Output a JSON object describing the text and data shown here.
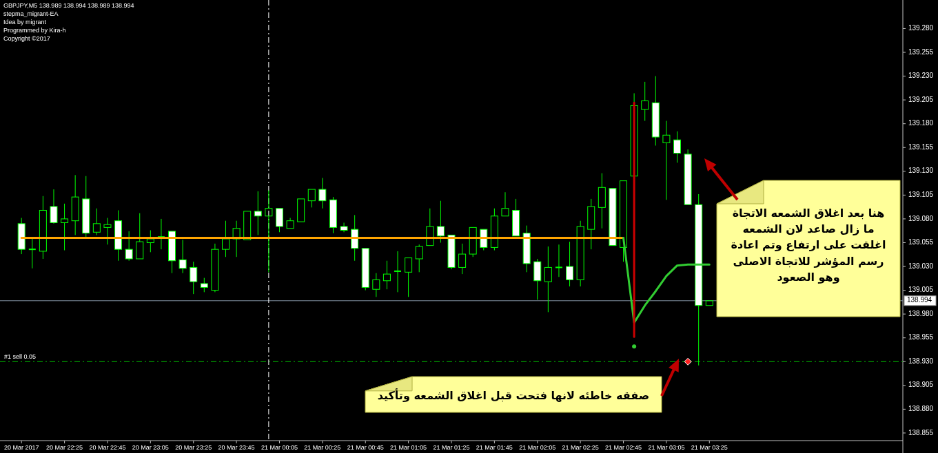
{
  "chart_data": {
    "type": "candlestick",
    "title": "GBPJPY,M5  138.989 138.994 138.989 138.994",
    "subtitle": "stepma_migrant-EA\nIdea by migrant\nProgrammed by Kira-h\nCopyright ©2017",
    "annotations": [
      "هنا بعد اغلاق الشمعه الاتجاة ما زال صاعد لان الشمعه اغلقت على ارتفاع وتم اعادة رسم المؤشر للاتجاة الاصلى وهو الصعود",
      "صفقه خاطئه لانها فتحت قبل اغلاق الشمعه وتأكيد"
    ],
    "x": [
      "2017-03-20T22:05",
      "2017-03-20T22:10",
      "2017-03-20T22:15",
      "2017-03-20T22:20",
      "2017-03-20T22:25",
      "2017-03-20T22:30",
      "2017-03-20T22:35",
      "2017-03-20T22:40",
      "2017-03-20T22:45",
      "2017-03-20T22:50",
      "2017-03-20T22:55",
      "2017-03-20T23:00",
      "2017-03-20T23:05",
      "2017-03-20T23:10",
      "2017-03-20T23:15",
      "2017-03-20T23:20",
      "2017-03-20T23:25",
      "2017-03-20T23:30",
      "2017-03-20T23:35",
      "2017-03-20T23:40",
      "2017-03-20T23:45",
      "2017-03-20T23:50",
      "2017-03-20T23:55",
      "2017-03-21T00:00",
      "2017-03-21T00:05",
      "2017-03-21T00:10",
      "2017-03-21T00:15",
      "2017-03-21T00:20",
      "2017-03-21T00:25",
      "2017-03-21T00:30",
      "2017-03-21T00:35",
      "2017-03-21T00:40",
      "2017-03-21T00:45",
      "2017-03-21T00:50",
      "2017-03-21T00:55",
      "2017-03-21T01:00",
      "2017-03-21T01:05",
      "2017-03-21T01:10",
      "2017-03-21T01:15",
      "2017-03-21T01:20",
      "2017-03-21T01:25",
      "2017-03-21T01:30",
      "2017-03-21T01:35",
      "2017-03-21T01:40",
      "2017-03-21T01:45",
      "2017-03-21T01:50",
      "2017-03-21T01:55",
      "2017-03-21T02:00",
      "2017-03-21T02:05",
      "2017-03-21T02:10",
      "2017-03-21T02:15",
      "2017-03-21T02:20",
      "2017-03-21T02:25",
      "2017-03-21T02:30",
      "2017-03-21T02:35",
      "2017-03-21T02:40",
      "2017-03-21T02:45",
      "2017-03-21T02:50",
      "2017-03-21T02:55",
      "2017-03-21T03:00",
      "2017-03-21T03:05",
      "2017-03-21T03:10",
      "2017-03-21T03:15",
      "2017-03-21T03:20",
      "2017-03-21T03:25"
    ],
    "ohlc": [
      [
        139.075,
        139.081,
        139.043,
        139.048
      ],
      [
        139.048,
        139.059,
        139.028,
        139.048
      ],
      [
        139.046,
        139.104,
        139.038,
        139.089
      ],
      [
        139.093,
        139.111,
        139.075,
        139.076
      ],
      [
        139.076,
        139.096,
        139.047,
        139.08
      ],
      [
        139.078,
        139.126,
        139.063,
        139.103
      ],
      [
        139.101,
        139.125,
        139.061,
        139.065
      ],
      [
        139.066,
        139.091,
        139.063,
        139.075
      ],
      [
        139.071,
        139.081,
        139.053,
        139.074
      ],
      [
        139.078,
        139.089,
        139.036,
        139.048
      ],
      [
        139.048,
        139.067,
        139.036,
        139.038
      ],
      [
        139.038,
        139.086,
        139.038,
        139.056
      ],
      [
        139.055,
        139.068,
        139.045,
        139.059
      ],
      [
        139.061,
        139.08,
        139.048,
        139.061
      ],
      [
        139.067,
        139.067,
        139.023,
        139.036
      ],
      [
        139.037,
        139.058,
        139.023,
        139.028
      ],
      [
        139.029,
        139.035,
        139.001,
        139.014
      ],
      [
        139.012,
        139.018,
        139.003,
        139.008
      ],
      [
        139.005,
        139.054,
        139.003,
        139.048
      ],
      [
        139.048,
        139.078,
        139.04,
        139.059
      ],
      [
        139.059,
        139.078,
        139.04,
        139.07
      ],
      [
        139.058,
        139.088,
        139.058,
        139.088
      ],
      [
        139.088,
        139.109,
        139.063,
        139.083
      ],
      [
        139.083,
        139.11,
        139.024,
        139.091
      ],
      [
        139.091,
        139.091,
        139.066,
        139.072
      ],
      [
        139.07,
        139.081,
        139.07,
        139.078
      ],
      [
        139.077,
        139.101,
        139.077,
        139.101
      ],
      [
        139.099,
        139.111,
        139.092,
        139.111
      ],
      [
        139.111,
        139.123,
        139.091,
        139.099
      ],
      [
        139.1,
        139.103,
        139.065,
        139.071
      ],
      [
        139.072,
        139.076,
        139.066,
        139.068
      ],
      [
        139.069,
        139.084,
        139.036,
        139.049
      ],
      [
        139.049,
        139.049,
        139.005,
        139.008
      ],
      [
        139.006,
        139.023,
        138.998,
        139.016
      ],
      [
        139.015,
        139.036,
        139.006,
        139.022
      ],
      [
        139.025,
        139.046,
        139.003,
        139.025
      ],
      [
        139.024,
        139.039,
        138.998,
        139.039
      ],
      [
        139.038,
        139.053,
        139.024,
        139.051
      ],
      [
        139.052,
        139.091,
        139.052,
        139.072
      ],
      [
        139.072,
        139.099,
        139.055,
        139.062
      ],
      [
        139.063,
        139.063,
        139.027,
        139.029
      ],
      [
        139.029,
        139.054,
        139.022,
        139.043
      ],
      [
        139.043,
        139.071,
        139.04,
        139.071
      ],
      [
        139.069,
        139.069,
        139.047,
        139.05
      ],
      [
        139.05,
        139.091,
        139.047,
        139.083
      ],
      [
        139.083,
        139.108,
        139.083,
        139.091
      ],
      [
        139.089,
        139.101,
        139.062,
        139.062
      ],
      [
        139.065,
        139.073,
        139.024,
        139.033
      ],
      [
        139.035,
        139.038,
        138.995,
        139.015
      ],
      [
        139.014,
        139.051,
        138.982,
        139.029
      ],
      [
        139.029,
        139.053,
        139.019,
        139.029
      ],
      [
        139.03,
        139.056,
        139.009,
        139.016
      ],
      [
        139.016,
        139.078,
        139.009,
        139.072
      ],
      [
        139.069,
        139.101,
        139.048,
        139.093
      ],
      [
        139.092,
        139.128,
        139.07,
        139.113
      ],
      [
        139.112,
        139.112,
        139.052,
        139.052
      ],
      [
        139.05,
        139.12,
        139.035,
        139.12
      ],
      [
        139.125,
        139.212,
        139.125,
        139.199
      ],
      [
        139.195,
        139.224,
        139.183,
        139.204
      ],
      [
        139.202,
        139.23,
        139.157,
        139.166
      ],
      [
        139.16,
        139.183,
        139.1,
        139.168
      ],
      [
        139.163,
        139.172,
        139.139,
        139.149
      ],
      [
        139.148,
        139.153,
        139.095,
        139.095
      ],
      [
        139.095,
        139.106,
        138.926,
        138.989
      ],
      [
        138.989,
        138.994,
        138.989,
        138.994
      ]
    ],
    "series": [
      {
        "type": "line",
        "color": "#ffa500",
        "x": [
          "2017-03-20T22:05",
          "2017-03-21T02:45"
        ],
        "values": [
          139.06,
          139.06
        ]
      },
      {
        "type": "line",
        "color": "#32cd32",
        "x": [
          "2017-03-21T02:45",
          "2017-03-21T02:50",
          "2017-03-21T02:55",
          "2017-03-21T03:00",
          "2017-03-21T03:05",
          "2017-03-21T03:10",
          "2017-03-21T03:15",
          "2017-03-21T03:20",
          "2017-03-21T03:25"
        ],
        "values": [
          139.06,
          138.971,
          138.989,
          139.004,
          139.02,
          139.031,
          139.032,
          139.032,
          139.032
        ]
      },
      {
        "type": "line",
        "color": "#cc0000",
        "x": [
          "2017-03-21T02:50",
          "2017-03-21T02:50"
        ],
        "values": [
          139.202,
          138.956
        ]
      },
      {
        "type": "scatter",
        "color": "#32cd32",
        "marker": "circle",
        "x": [
          "2017-03-21T02:50"
        ],
        "values": [
          138.946
        ]
      },
      {
        "type": "scatter",
        "color": "#ff2020",
        "marker": "diamond",
        "x": [
          "2017-03-21T03:15"
        ],
        "values": [
          138.93
        ]
      }
    ],
    "ref_lines": [
      {
        "axis": "y",
        "value": 138.93,
        "label": "#1 sell 0.05",
        "color": "#00c000",
        "line_style": "dashed"
      },
      {
        "axis": "y",
        "value": 138.994,
        "label": "138.994",
        "color": "#8090a0",
        "line_style": "solid"
      },
      {
        "axis": "x",
        "value": "2017-03-21T00:00",
        "color": "#ffffff",
        "line_style": "dashed"
      }
    ],
    "xlim": [
      "2017-03-20T21:55",
      "2017-03-21T04:55"
    ],
    "xticks": [
      {
        "value": "2017-03-20T22:05",
        "label": "20 Mar 2017"
      },
      {
        "value": "2017-03-20T22:25",
        "label": "20 Mar 22:25"
      },
      {
        "value": "2017-03-20T22:45",
        "label": "20 Mar 22:45"
      },
      {
        "value": "2017-03-20T23:05",
        "label": "20 Mar 23:05"
      },
      {
        "value": "2017-03-20T23:25",
        "label": "20 Mar 23:25"
      },
      {
        "value": "2017-03-20T23:45",
        "label": "20 Mar 23:45"
      },
      {
        "value": "2017-03-21T00:05",
        "label": "21 Mar 00:05"
      },
      {
        "value": "2017-03-21T00:25",
        "label": "21 Mar 00:25"
      },
      {
        "value": "2017-03-21T00:45",
        "label": "21 Mar 00:45"
      },
      {
        "value": "2017-03-21T01:05",
        "label": "21 Mar 01:05"
      },
      {
        "value": "2017-03-21T01:25",
        "label": "21 Mar 01:25"
      },
      {
        "value": "2017-03-21T01:45",
        "label": "21 Mar 01:45"
      },
      {
        "value": "2017-03-21T02:05",
        "label": "21 Mar 02:05"
      },
      {
        "value": "2017-03-21T02:25",
        "label": "21 Mar 02:25"
      },
      {
        "value": "2017-03-21T02:45",
        "label": "21 Mar 02:45"
      },
      {
        "value": "2017-03-21T03:05",
        "label": "21 Mar 03:05"
      },
      {
        "value": "2017-03-21T03:25",
        "label": "21 Mar 03:25"
      }
    ],
    "ylim": [
      138.847,
      139.31
    ],
    "yticks": [
      {
        "value": 139.28,
        "label": "139.280"
      },
      {
        "value": 139.255,
        "label": "139.255"
      },
      {
        "value": 139.23,
        "label": "139.230"
      },
      {
        "value": 139.205,
        "label": "139.205"
      },
      {
        "value": 139.18,
        "label": "139.180"
      },
      {
        "value": 139.155,
        "label": "139.155"
      },
      {
        "value": 139.13,
        "label": "139.130"
      },
      {
        "value": 139.105,
        "label": "139.105"
      },
      {
        "value": 139.08,
        "label": "139.080"
      },
      {
        "value": 139.055,
        "label": "139.055"
      },
      {
        "value": 139.03,
        "label": "139.030"
      },
      {
        "value": 139.005,
        "label": "139.005"
      },
      {
        "value": 138.98,
        "label": "138.980"
      },
      {
        "value": 138.955,
        "label": "138.955"
      },
      {
        "value": 138.93,
        "label": "138.930"
      },
      {
        "value": 138.905,
        "label": "138.905"
      },
      {
        "value": 138.88,
        "label": "138.880"
      },
      {
        "value": 138.855,
        "label": "138.855"
      }
    ]
  }
}
